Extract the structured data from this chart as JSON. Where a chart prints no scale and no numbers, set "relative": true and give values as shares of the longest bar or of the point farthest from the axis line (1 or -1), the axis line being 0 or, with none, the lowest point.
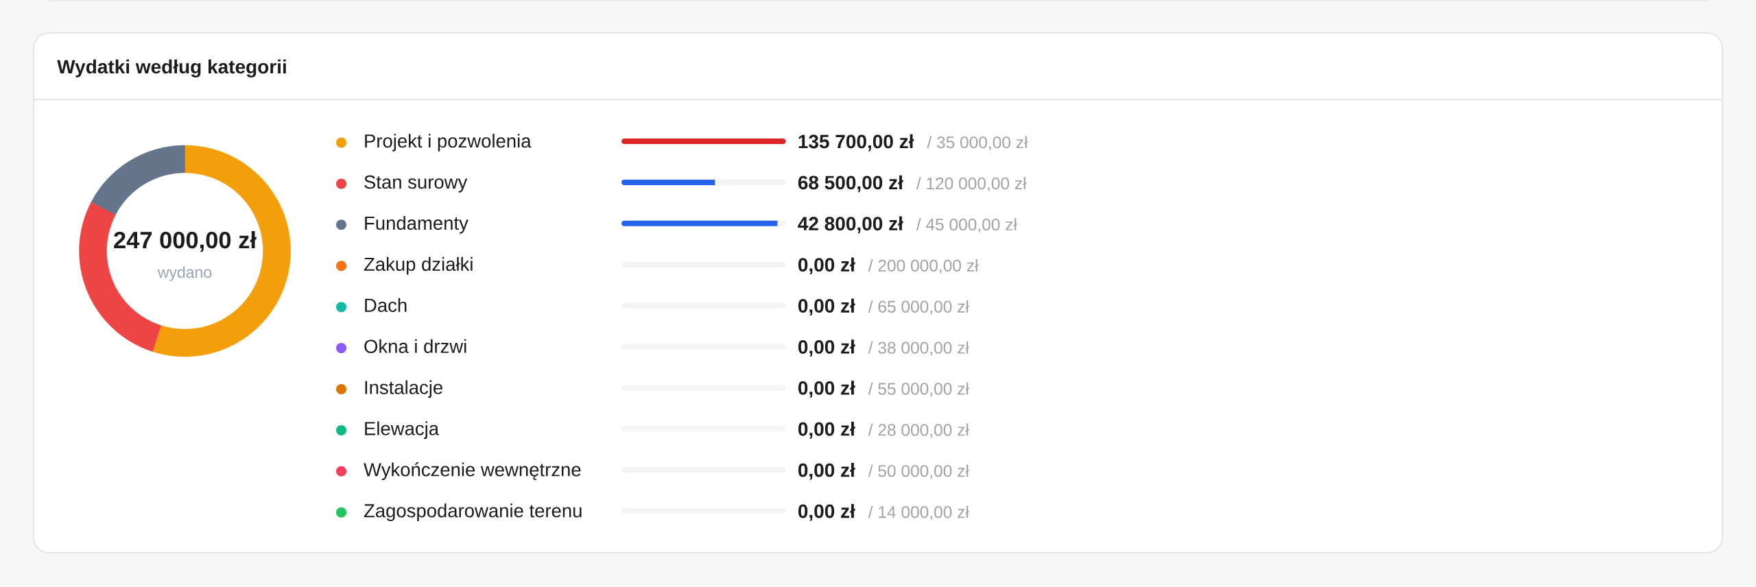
{
  "chart_data": [
    {
      "type": "donut",
      "title": "Wydatki według kategorii",
      "categories": [
        "Projekt i pozwolenia",
        "Stan surowy",
        "Fundamenty",
        "Zakup działki",
        "Dach",
        "Okna i drzwi",
        "Instalacje",
        "Elewacja",
        "Wykończenie wewnętrzne",
        "Zagospodarowanie terenu"
      ],
      "values": [
        135700,
        68500,
        42800,
        0,
        0,
        0,
        0,
        0,
        0,
        0
      ],
      "value_labels": [
        "135 700,00 zł",
        "68 500,00 zł",
        "42 800,00 zł",
        "0,00 zł",
        "0,00 zł",
        "0,00 zł",
        "0,00 zł",
        "0,00 zł",
        "0,00 zł",
        "0,00 zł"
      ],
      "colors": [
        "#f59e0b",
        "#ef4444",
        "#64748b",
        "#f97316",
        "#14b8a6",
        "#8b5cf6",
        "#d97706",
        "#10b981",
        "#f43f5e",
        "#22c55e"
      ],
      "legend": "right",
      "annotations": [
        "247 000,00 zł",
        "wydano"
      ]
    },
    {
      "type": "bar",
      "orientation": "horizontal",
      "stacked": true,
      "relative": true,
      "categories": [
        null,
        null,
        null,
        null,
        null,
        null,
        null,
        null,
        null,
        null
      ],
      "series": [
        {
          "colors": [
            "#dc2626",
            "#2563eb",
            "#2563eb",
            "#2563eb",
            "#2563eb",
            "#2563eb",
            "#2563eb",
            "#2563eb",
            "#2563eb",
            "#2563eb"
          ],
          "values": [
            1,
            0.57,
            0.95,
            0,
            0,
            0,
            0,
            0,
            0,
            0
          ]
        },
        {
          "color": "#f3f4f6",
          "values": [
            0,
            0.43,
            0.05,
            1,
            1,
            1,
            1,
            1,
            1,
            1
          ]
        }
      ],
      "annotations": [
        "/ 35 000,00 zł",
        "/ 120 000,00 zł",
        "/ 45 000,00 zł",
        "/ 200 000,00 zł",
        "/ 65 000,00 zł",
        "/ 38 000,00 zł",
        "/ 55 000,00 zł",
        "/ 28 000,00 zł",
        "/ 50 000,00 zł",
        "/ 14 000,00 zł"
      ]
    }
  ]
}
